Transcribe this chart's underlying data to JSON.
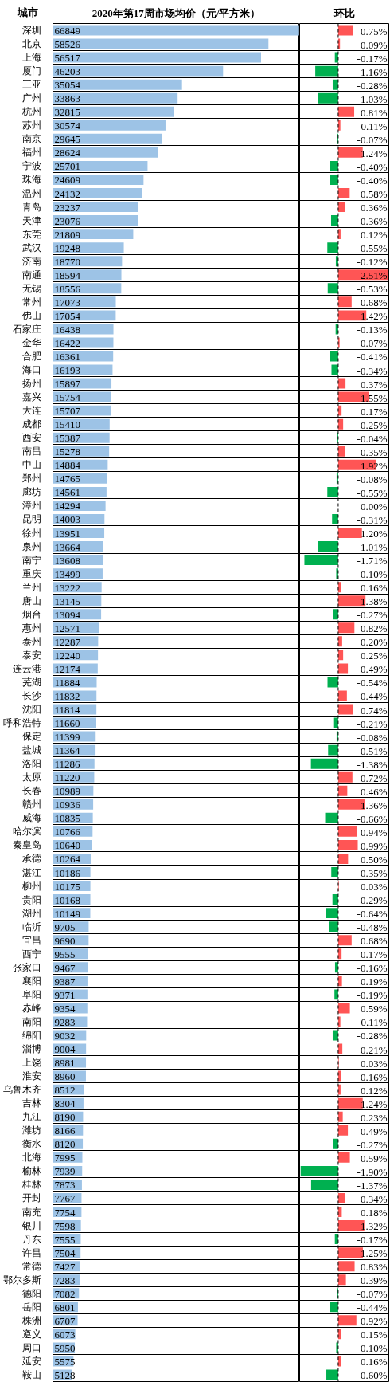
{
  "chart_data": [
    {
      "type": "bar",
      "orientation": "horizontal",
      "title": "2020年第17周市场均价（元/平方米）",
      "ylabel": "城市",
      "categories": [
        "深圳",
        "北京",
        "上海",
        "厦门",
        "三亚",
        "广州",
        "杭州",
        "苏州",
        "南京",
        "福州",
        "宁波",
        "珠海",
        "温州",
        "青岛",
        "天津",
        "东莞",
        "武汉",
        "济南",
        "南通",
        "无锡",
        "常州",
        "佛山",
        "石家庄",
        "金华",
        "合肥",
        "海口",
        "扬州",
        "嘉兴",
        "大连",
        "成都",
        "西安",
        "南昌",
        "中山",
        "郑州",
        "廊坊",
        "漳州",
        "昆明",
        "徐州",
        "泉州",
        "南宁",
        "重庆",
        "兰州",
        "唐山",
        "烟台",
        "惠州",
        "泰州",
        "泰安",
        "连云港",
        "芜湖",
        "长沙",
        "沈阳",
        "呼和浩特",
        "保定",
        "盐城",
        "洛阳",
        "太原",
        "长春",
        "赣州",
        "威海",
        "哈尔滨",
        "秦皇岛",
        "承德",
        "湛江",
        "柳州",
        "贵阳",
        "湖州",
        "临沂",
        "宜昌",
        "西宁",
        "张家口",
        "襄阳",
        "阜阳",
        "赤峰",
        "南阳",
        "绵阳",
        "淄博",
        "上饶",
        "淮安",
        "乌鲁木齐",
        "吉林",
        "九江",
        "潍坊",
        "衡水",
        "北海",
        "榆林",
        "桂林",
        "开封",
        "南充",
        "银川",
        "丹东",
        "许昌",
        "常德",
        "鄂尔多斯",
        "德阳",
        "岳阳",
        "株洲",
        "遵义",
        "周口",
        "延安",
        "鞍山"
      ],
      "values": [
        66849,
        58526,
        56517,
        46203,
        35054,
        33863,
        32815,
        30574,
        29645,
        28624,
        25701,
        24609,
        24132,
        23237,
        23076,
        21809,
        19248,
        18770,
        18594,
        18556,
        17073,
        17054,
        16438,
        16422,
        16361,
        16193,
        15897,
        15754,
        15707,
        15410,
        15387,
        15278,
        14884,
        14765,
        14561,
        14294,
        14003,
        13951,
        13664,
        13608,
        13499,
        13222,
        13145,
        13094,
        12571,
        12287,
        12240,
        12174,
        11884,
        11832,
        11814,
        11660,
        11399,
        11364,
        11286,
        11220,
        10989,
        10936,
        10835,
        10766,
        10640,
        10264,
        10186,
        10175,
        10168,
        10149,
        9705,
        9690,
        9555,
        9467,
        9387,
        9371,
        9354,
        9283,
        9032,
        9004,
        8981,
        8960,
        8512,
        8304,
        8190,
        8166,
        8120,
        7995,
        7939,
        7873,
        7767,
        7754,
        7598,
        7555,
        7504,
        7427,
        7283,
        7082,
        6801,
        6707,
        6073,
        5950,
        5575,
        5128
      ],
      "color": "#9dc3e6",
      "data_labels": true,
      "xlim": [
        0,
        67000
      ],
      "tick_labels": "y",
      "grid": "y"
    },
    {
      "type": "bar",
      "orientation": "horizontal",
      "title": "环比",
      "categories": [
        null,
        null,
        null,
        null,
        null,
        null,
        null,
        null,
        null,
        null,
        null,
        null,
        null,
        null,
        null,
        null,
        null,
        null,
        null,
        null,
        null,
        null,
        null,
        null,
        null,
        null,
        null,
        null,
        null,
        null,
        null,
        null,
        null,
        null,
        null,
        null,
        null,
        null,
        null,
        null,
        null,
        null,
        null,
        null,
        null,
        null,
        null,
        null,
        null,
        null,
        null,
        null,
        null,
        null,
        null,
        null,
        null,
        null,
        null,
        null,
        null,
        null,
        null,
        null,
        null,
        null,
        null,
        null,
        null,
        null,
        null,
        null,
        null,
        null,
        null,
        null,
        null,
        null,
        null,
        null,
        null,
        null,
        null,
        null,
        null,
        null,
        null,
        null,
        null,
        null,
        null,
        null,
        null,
        null,
        null,
        null,
        null,
        null,
        null,
        null
      ],
      "values": [
        0.75,
        0.09,
        -0.17,
        -1.16,
        -0.28,
        -1.03,
        0.81,
        0.11,
        -0.07,
        1.24,
        -0.4,
        -0.4,
        0.58,
        0.36,
        -0.36,
        0.12,
        -0.55,
        -0.12,
        2.51,
        -0.53,
        0.68,
        1.42,
        -0.13,
        0.07,
        -0.41,
        -0.34,
        0.37,
        1.55,
        0.17,
        0.25,
        -0.04,
        0.35,
        1.92,
        -0.08,
        -0.55,
        0.0,
        -0.31,
        1.2,
        -1.01,
        -1.71,
        -0.1,
        0.16,
        1.38,
        -0.27,
        0.82,
        0.2,
        0.25,
        0.49,
        -0.54,
        0.44,
        0.74,
        -0.21,
        -0.08,
        -0.51,
        -1.38,
        0.72,
        0.46,
        1.36,
        -0.66,
        0.94,
        0.99,
        0.5,
        -0.35,
        0.03,
        -0.29,
        -0.64,
        -0.48,
        0.68,
        0.17,
        -0.16,
        0.19,
        -0.19,
        0.59,
        0.11,
        -0.28,
        0.21,
        0.03,
        0.16,
        0.12,
        1.24,
        0.23,
        0.49,
        -0.27,
        0.59,
        -1.9,
        -1.37,
        0.34,
        0.18,
        1.32,
        -0.17,
        1.25,
        0.83,
        0.39,
        -0.07,
        -0.44,
        0.92,
        0.15,
        -0.1,
        0.16,
        -0.6
      ],
      "colors": [
        "#ff5555",
        "#ff5555",
        "#00b050",
        "#00b050",
        "#00b050",
        "#00b050",
        "#ff5555",
        "#ff5555",
        "#00b050",
        "#ff5555",
        "#00b050",
        "#00b050",
        "#ff5555",
        "#ff5555",
        "#00b050",
        "#ff5555",
        "#00b050",
        "#00b050",
        "#ff5555",
        "#00b050",
        "#ff5555",
        "#ff5555",
        "#00b050",
        "#ff5555",
        "#00b050",
        "#00b050",
        "#ff5555",
        "#ff5555",
        "#ff5555",
        "#ff5555",
        "#00b050",
        "#ff5555",
        "#ff5555",
        "#00b050",
        "#00b050",
        "#ff5555",
        "#00b050",
        "#ff5555",
        "#00b050",
        "#00b050",
        "#00b050",
        "#ff5555",
        "#ff5555",
        "#00b050",
        "#ff5555",
        "#ff5555",
        "#ff5555",
        "#ff5555",
        "#00b050",
        "#ff5555",
        "#ff5555",
        "#00b050",
        "#00b050",
        "#00b050",
        "#00b050",
        "#ff5555",
        "#ff5555",
        "#ff5555",
        "#00b050",
        "#ff5555",
        "#ff5555",
        "#ff5555",
        "#00b050",
        "#ff5555",
        "#00b050",
        "#00b050",
        "#00b050",
        "#ff5555",
        "#ff5555",
        "#00b050",
        "#ff5555",
        "#00b050",
        "#ff5555",
        "#ff5555",
        "#00b050",
        "#ff5555",
        "#ff5555",
        "#ff5555",
        "#ff5555",
        "#ff5555",
        "#ff5555",
        "#ff5555",
        "#00b050",
        "#ff5555",
        "#00b050",
        "#00b050",
        "#ff5555",
        "#ff5555",
        "#ff5555",
        "#00b050",
        "#ff5555",
        "#ff5555",
        "#ff5555",
        "#00b050",
        "#00b050",
        "#ff5555",
        "#ff5555",
        "#00b050",
        "#ff5555",
        "#00b050"
      ],
      "value_labels": [
        "0.75%",
        "0.09%",
        "-0.17%",
        "-1.16%",
        "-0.28%",
        "-1.03%",
        "0.81%",
        "0.11%",
        "-0.07%",
        "1.24%",
        "-0.40%",
        "-0.40%",
        "0.58%",
        "0.36%",
        "-0.36%",
        "0.12%",
        "-0.55%",
        "-0.12%",
        "2.51%",
        "-0.53%",
        "0.68%",
        "1.42%",
        "-0.13%",
        "0.07%",
        "-0.41%",
        "-0.34%",
        "0.37%",
        "1.55%",
        "0.17%",
        "0.25%",
        "-0.04%",
        "0.35%",
        "1.92%",
        "-0.08%",
        "-0.55%",
        "0.00%",
        "-0.31%",
        "1.20%",
        "-1.01%",
        "-1.71%",
        "-0.10%",
        "0.16%",
        "1.38%",
        "-0.27%",
        "0.82%",
        "0.20%",
        "0.25%",
        "0.49%",
        "-0.54%",
        "0.44%",
        "0.74%",
        "-0.21%",
        "-0.08%",
        "-0.51%",
        "-1.38%",
        "0.72%",
        "0.46%",
        "1.36%",
        "-0.66%",
        "0.94%",
        "0.99%",
        "0.50%",
        "-0.35%",
        "0.03%",
        "-0.29%",
        "-0.64%",
        "-0.48%",
        "0.68%",
        "0.17%",
        "-0.16%",
        "0.19%",
        "-0.19%",
        "0.59%",
        "0.11%",
        "-0.28%",
        "0.21%",
        "0.03%",
        "0.16%",
        "0.12%",
        "1.24%",
        "0.23%",
        "0.49%",
        "-0.27%",
        "0.59%",
        "-1.90%",
        "-1.37%",
        "0.34%",
        "0.18%",
        "1.32%",
        "-0.17%",
        "1.25%",
        "0.83%",
        "0.39%",
        "-0.07%",
        "-0.44%",
        "0.92%",
        "0.15%",
        "-0.10%",
        "0.16%",
        "-0.60%"
      ],
      "xlim": [
        -1.95,
        2.56
      ],
      "tick_labels": "y",
      "grid": "y",
      "ref_lines": [
        {
          "axis": "x",
          "value": 0,
          "line_style": "dashed",
          "color": "#000000"
        }
      ]
    }
  ]
}
